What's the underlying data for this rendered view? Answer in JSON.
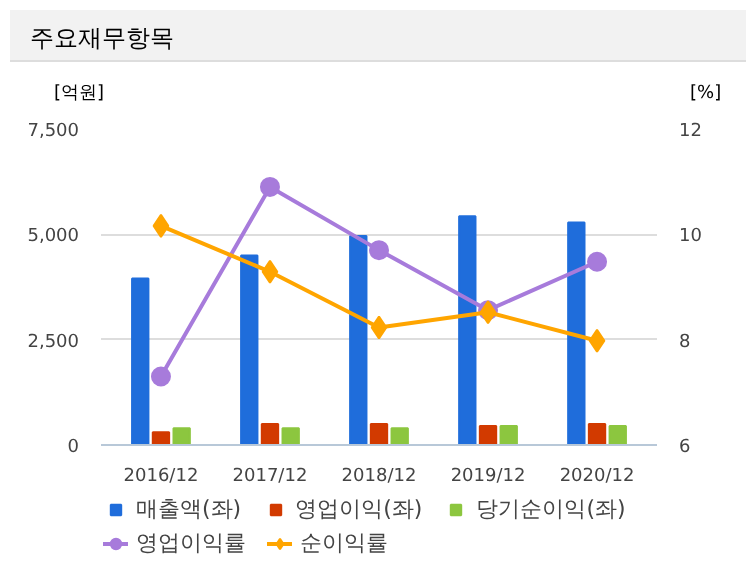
{
  "chart_data": {
    "type": "bar",
    "title": "주요재무항목",
    "ylabel": "[억원]",
    "y2label": "[%]",
    "categories": [
      "2016/12",
      "2017/12",
      "2018/12",
      "2019/12",
      "2020/12"
    ],
    "series": [
      {
        "name": "매출액(좌)",
        "color": "#1f6ddb",
        "values": [
          3950,
          4500,
          4960,
          5430,
          5280
        ]
      },
      {
        "name": "영업이익(좌)",
        "color": "#d23a00",
        "values": [
          300,
          500,
          500,
          450,
          500
        ]
      },
      {
        "name": "당기순이익(좌)",
        "color": "#8cc63f",
        "values": [
          400,
          400,
          400,
          450,
          450
        ]
      },
      {
        "name": "영업이익률",
        "type": "line",
        "axis": "y2",
        "marker": "circle",
        "color": "#a77bdb",
        "values": [
          7.3,
          10.9,
          9.7,
          8.56,
          9.48
        ]
      },
      {
        "name": "순이익률",
        "type": "line",
        "axis": "y2",
        "marker": "diamond",
        "color": "#ffa500",
        "values": [
          10.16,
          9.29,
          8.23,
          8.52,
          7.98
        ]
      }
    ],
    "ylim": [
      0,
      7500
    ],
    "yticks": [
      {
        "value": 0,
        "label": "0"
      },
      {
        "value": 2500,
        "label": "2,500"
      },
      {
        "value": 5000,
        "label": "5,000"
      },
      {
        "value": 7500,
        "label": "7,500"
      }
    ],
    "y2lim": [
      6,
      12
    ],
    "y2ticks": [
      6,
      8,
      10,
      12
    ],
    "grid": "y",
    "legend": "bottom"
  }
}
